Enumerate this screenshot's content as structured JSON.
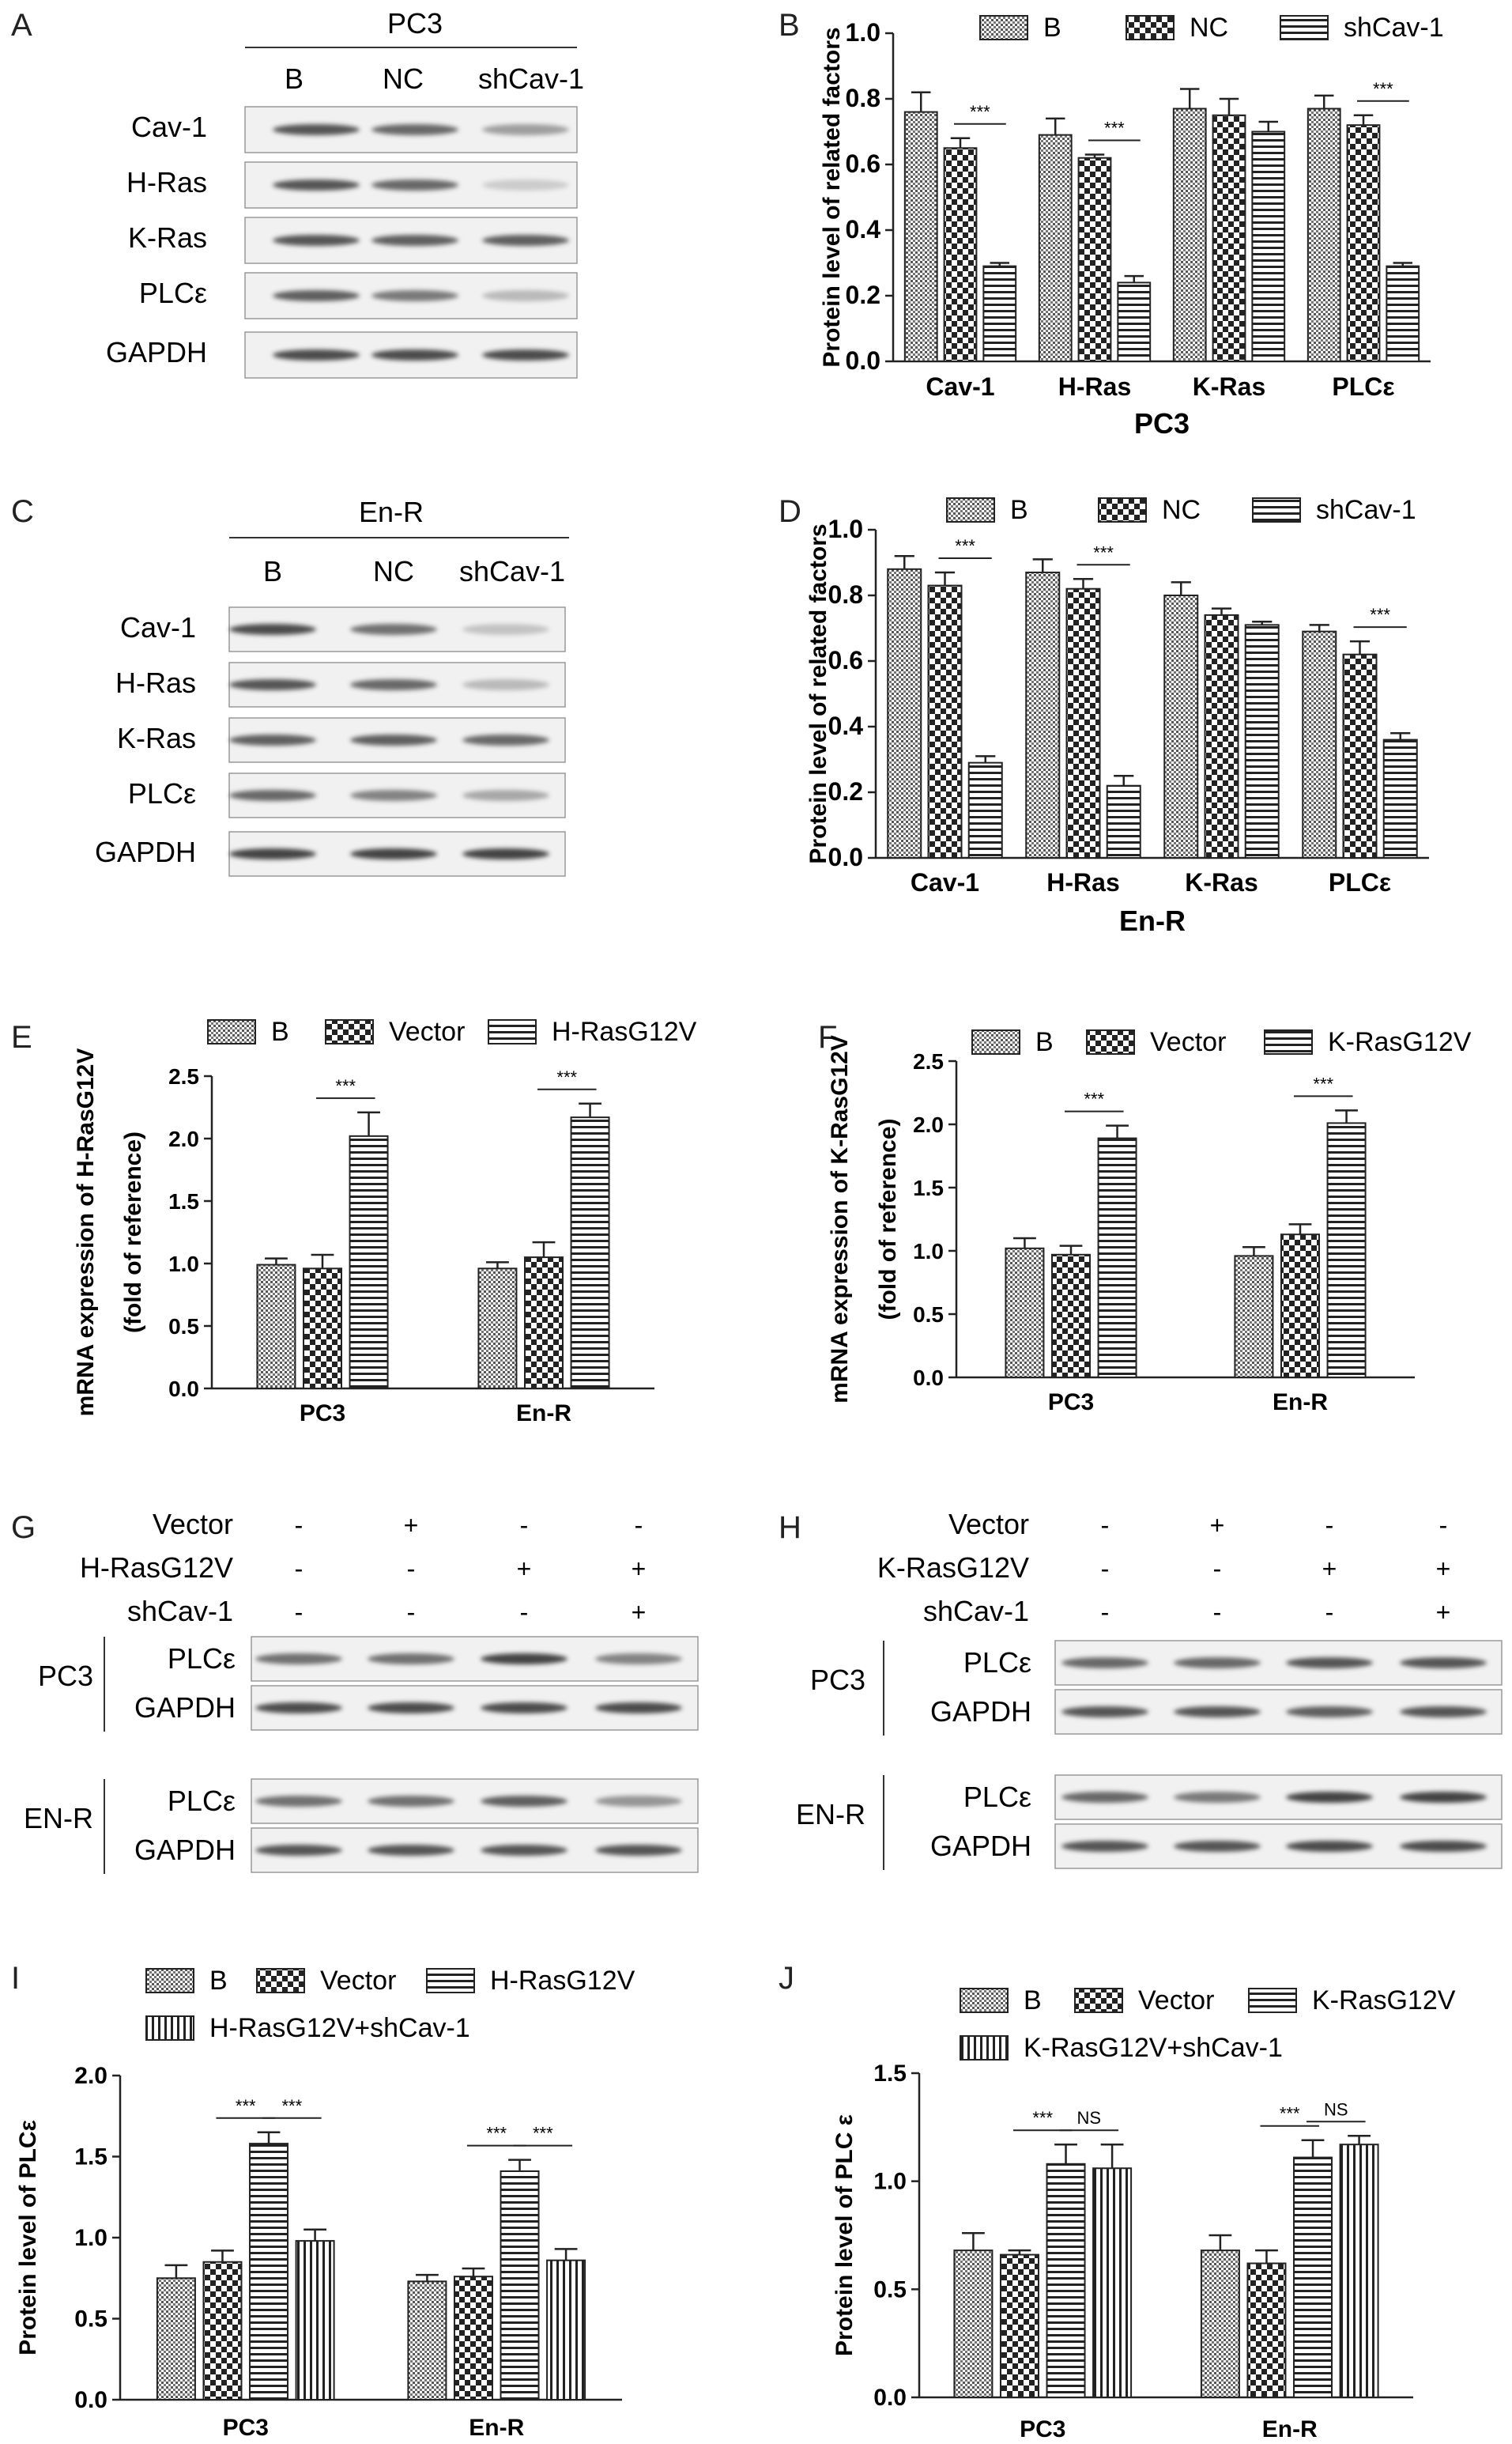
{
  "panel_letters": [
    "A",
    "B",
    "C",
    "D",
    "E",
    "F",
    "G",
    "H",
    "I",
    "J"
  ],
  "colors": {
    "bar_stroke": "#222222",
    "text": "#222222",
    "blot_bg": "#f1f1f1",
    "band": "#3a3a3a"
  },
  "blots": [
    {
      "letter": "A",
      "title": "PC3",
      "lanes": [
        "B",
        "NC",
        "shCav-1"
      ],
      "rows": [
        {
          "label": "Cav-1",
          "intensity": [
            0.85,
            0.75,
            0.45
          ]
        },
        {
          "label": "H-Ras",
          "intensity": [
            0.85,
            0.75,
            0.2
          ]
        },
        {
          "label": "K-Ras",
          "intensity": [
            0.85,
            0.8,
            0.8
          ]
        },
        {
          "label": "PLCε",
          "intensity": [
            0.8,
            0.65,
            0.3
          ]
        },
        {
          "label": "GAPDH",
          "intensity": [
            0.9,
            0.9,
            0.9
          ]
        }
      ]
    },
    {
      "letter": "C",
      "title": "En-R",
      "lanes": [
        "B",
        "NC",
        "shCav-1"
      ],
      "rows": [
        {
          "label": "Cav-1",
          "intensity": [
            0.9,
            0.7,
            0.25
          ]
        },
        {
          "label": "H-Ras",
          "intensity": [
            0.85,
            0.75,
            0.3
          ]
        },
        {
          "label": "K-Ras",
          "intensity": [
            0.8,
            0.8,
            0.75
          ]
        },
        {
          "label": "PLCε",
          "intensity": [
            0.75,
            0.6,
            0.4
          ]
        },
        {
          "label": "GAPDH",
          "intensity": [
            0.95,
            0.95,
            0.95
          ]
        }
      ]
    },
    {
      "letter": "G",
      "treatments": [
        {
          "label": "Vector",
          "marks": [
            "-",
            "+",
            "-",
            "-"
          ]
        },
        {
          "label": "H-RasG12V",
          "marks": [
            "-",
            "-",
            "+",
            "+"
          ]
        },
        {
          "label": "shCav-1",
          "marks": [
            "-",
            "-",
            "-",
            "+"
          ]
        }
      ],
      "groups": [
        {
          "label": "PC3",
          "rows": [
            {
              "label": "PLCε",
              "intensity": [
                0.7,
                0.7,
                0.95,
                0.6
              ]
            },
            {
              "label": "GAPDH",
              "intensity": [
                0.9,
                0.9,
                0.9,
                0.9
              ]
            }
          ]
        },
        {
          "label": "EN-R",
          "rows": [
            {
              "label": "PLCε",
              "intensity": [
                0.7,
                0.7,
                0.8,
                0.5
              ]
            },
            {
              "label": "GAPDH",
              "intensity": [
                0.85,
                0.85,
                0.85,
                0.85
              ]
            }
          ]
        }
      ]
    },
    {
      "letter": "H",
      "treatments": [
        {
          "label": "Vector",
          "marks": [
            "-",
            "+",
            "-",
            "-"
          ]
        },
        {
          "label": "K-RasG12V",
          "marks": [
            "-",
            "-",
            "+",
            "+"
          ]
        },
        {
          "label": "shCav-1",
          "marks": [
            "-",
            "-",
            "-",
            "+"
          ]
        }
      ],
      "groups": [
        {
          "label": "PC3",
          "rows": [
            {
              "label": "PLCε",
              "intensity": [
                0.75,
                0.75,
                0.85,
                0.85
              ]
            },
            {
              "label": "GAPDH",
              "intensity": [
                0.85,
                0.85,
                0.8,
                0.85
              ]
            }
          ]
        },
        {
          "label": "EN-R",
          "rows": [
            {
              "label": "PLCε",
              "intensity": [
                0.75,
                0.65,
                0.95,
                0.95
              ]
            },
            {
              "label": "GAPDH",
              "intensity": [
                0.85,
                0.85,
                0.9,
                0.9
              ]
            }
          ]
        }
      ]
    }
  ],
  "chart_data": [
    {
      "panel": "B",
      "type": "bar",
      "categories": [
        "Cav-1",
        "H-Ras",
        "K-Ras",
        "PLCε"
      ],
      "xlabel": "PC3",
      "ylabel": "Protein level of related factors",
      "ylim": [
        0,
        1.0
      ],
      "yticks": [
        "0.0",
        "0.2",
        "0.4",
        "0.6",
        "0.8",
        "1.0"
      ],
      "series": [
        {
          "name": "B",
          "pattern": "dots",
          "values": [
            0.76,
            0.69,
            0.77,
            0.77
          ],
          "errors": [
            0.06,
            0.05,
            0.06,
            0.04
          ]
        },
        {
          "name": "NC",
          "pattern": "checker",
          "values": [
            0.65,
            0.62,
            0.75,
            0.72
          ],
          "errors": [
            0.03,
            0.01,
            0.05,
            0.03
          ]
        },
        {
          "name": "shCav-1",
          "pattern": "hstripe",
          "values": [
            0.29,
            0.24,
            0.7,
            0.29
          ],
          "errors": [
            0.01,
            0.02,
            0.03,
            0.01
          ]
        }
      ],
      "significance": [
        {
          "category": 0,
          "from": 1,
          "to": 2,
          "label": "***"
        },
        {
          "category": 1,
          "from": 1,
          "to": 2,
          "label": "***"
        },
        {
          "category": 3,
          "from": 1,
          "to": 2,
          "label": "***"
        }
      ],
      "legend": "top"
    },
    {
      "panel": "D",
      "type": "bar",
      "categories": [
        "Cav-1",
        "H-Ras",
        "K-Ras",
        "PLCε"
      ],
      "xlabel": "En-R",
      "ylabel": "Protein level of related factors",
      "ylim": [
        0,
        1.0
      ],
      "yticks": [
        "0.0",
        "0.2",
        "0.4",
        "0.6",
        "0.8",
        "1.0"
      ],
      "series": [
        {
          "name": "B",
          "pattern": "dots",
          "values": [
            0.88,
            0.87,
            0.8,
            0.69
          ],
          "errors": [
            0.04,
            0.04,
            0.04,
            0.02
          ]
        },
        {
          "name": "NC",
          "pattern": "checker",
          "values": [
            0.83,
            0.82,
            0.74,
            0.62
          ],
          "errors": [
            0.04,
            0.03,
            0.02,
            0.04
          ]
        },
        {
          "name": "shCav-1",
          "pattern": "hstripe",
          "values": [
            0.29,
            0.22,
            0.71,
            0.36
          ],
          "errors": [
            0.02,
            0.03,
            0.01,
            0.02
          ]
        }
      ],
      "significance": [
        {
          "category": 0,
          "from": 1,
          "to": 2,
          "label": "***"
        },
        {
          "category": 1,
          "from": 1,
          "to": 2,
          "label": "***"
        },
        {
          "category": 3,
          "from": 1,
          "to": 2,
          "label": "***"
        }
      ],
      "legend": "top"
    },
    {
      "panel": "E",
      "type": "bar",
      "categories": [
        "PC3",
        "En-R"
      ],
      "xlabel": "",
      "ylabel": "mRNA expression of H-RasG12V",
      "ylabel2": "(fold of reference)",
      "ylim": [
        0,
        2.5
      ],
      "yticks": [
        "0.0",
        "0.5",
        "1.0",
        "1.5",
        "2.0",
        "2.5"
      ],
      "series": [
        {
          "name": "B",
          "pattern": "dots",
          "values": [
            0.99,
            0.96
          ],
          "errors": [
            0.05,
            0.05
          ]
        },
        {
          "name": "Vector",
          "pattern": "checker",
          "values": [
            0.96,
            1.05
          ],
          "errors": [
            0.11,
            0.12
          ]
        },
        {
          "name": "H-RasG12V",
          "pattern": "hstripe",
          "values": [
            2.02,
            2.17
          ],
          "errors": [
            0.19,
            0.11
          ]
        }
      ],
      "significance": [
        {
          "category": 0,
          "from": 1,
          "to": 2,
          "label": "***"
        },
        {
          "category": 1,
          "from": 1,
          "to": 2,
          "label": "***"
        }
      ],
      "legend": "top"
    },
    {
      "panel": "F",
      "type": "bar",
      "categories": [
        "PC3",
        "En-R"
      ],
      "xlabel": "",
      "ylabel": "mRNA expression of K-RasG12V",
      "ylabel2": "(fold of reference)",
      "ylim": [
        0,
        2.5
      ],
      "yticks": [
        "0.0",
        "0.5",
        "1.0",
        "1.5",
        "2.0",
        "2.5"
      ],
      "series": [
        {
          "name": "B",
          "pattern": "dots",
          "values": [
            1.02,
            0.96
          ],
          "errors": [
            0.08,
            0.07
          ]
        },
        {
          "name": "Vector",
          "pattern": "checker",
          "values": [
            0.97,
            1.13
          ],
          "errors": [
            0.07,
            0.08
          ]
        },
        {
          "name": "K-RasG12V",
          "pattern": "hstripe",
          "values": [
            1.89,
            2.01
          ],
          "errors": [
            0.1,
            0.1
          ]
        }
      ],
      "significance": [
        {
          "category": 0,
          "from": 1,
          "to": 2,
          "label": "***"
        },
        {
          "category": 1,
          "from": 1,
          "to": 2,
          "label": "***"
        }
      ],
      "legend": "top"
    },
    {
      "panel": "I",
      "type": "bar",
      "categories": [
        "PC3",
        "En-R"
      ],
      "xlabel": "",
      "ylabel": "Protein level of PLCε",
      "ylim": [
        0,
        2.0
      ],
      "yticks": [
        "0.0",
        "0.5",
        "1.0",
        "1.5",
        "2.0"
      ],
      "series": [
        {
          "name": "B",
          "pattern": "dots",
          "values": [
            0.75,
            0.73
          ],
          "errors": [
            0.08,
            0.04
          ]
        },
        {
          "name": "Vector",
          "pattern": "checker",
          "values": [
            0.85,
            0.76
          ],
          "errors": [
            0.07,
            0.05
          ]
        },
        {
          "name": "H-RasG12V",
          "pattern": "hstripe",
          "values": [
            1.58,
            1.41
          ],
          "errors": [
            0.07,
            0.07
          ]
        },
        {
          "name": "H-RasG12V+shCav-1",
          "pattern": "vstripe",
          "values": [
            0.98,
            0.86
          ],
          "errors": [
            0.07,
            0.07
          ]
        }
      ],
      "significance": [
        {
          "category": 0,
          "from": 1,
          "to": 2,
          "label": "***"
        },
        {
          "category": 0,
          "from": 2,
          "to": 3,
          "label": "***"
        },
        {
          "category": 1,
          "from": 1,
          "to": 2,
          "label": "***"
        },
        {
          "category": 1,
          "from": 2,
          "to": 3,
          "label": "***"
        }
      ],
      "legend": "top"
    },
    {
      "panel": "J",
      "type": "bar",
      "categories": [
        "PC3",
        "En-R"
      ],
      "xlabel": "",
      "ylabel": "Protein level of PLC ε",
      "ylim": [
        0,
        1.5
      ],
      "yticks": [
        "0.0",
        "0.5",
        "1.0",
        "1.5"
      ],
      "series": [
        {
          "name": "B",
          "pattern": "dots",
          "values": [
            0.68,
            0.68
          ],
          "errors": [
            0.08,
            0.07
          ]
        },
        {
          "name": "Vector",
          "pattern": "checker",
          "values": [
            0.66,
            0.62
          ],
          "errors": [
            0.02,
            0.06
          ]
        },
        {
          "name": "K-RasG12V",
          "pattern": "hstripe",
          "values": [
            1.08,
            1.11
          ],
          "errors": [
            0.09,
            0.08
          ]
        },
        {
          "name": "K-RasG12V+shCav-1",
          "pattern": "vstripe",
          "values": [
            1.06,
            1.17
          ],
          "errors": [
            0.11,
            0.04
          ]
        }
      ],
      "significance": [
        {
          "category": 0,
          "from": 1,
          "to": 2,
          "label": "***"
        },
        {
          "category": 0,
          "from": 2,
          "to": 3,
          "label": "NS"
        },
        {
          "category": 1,
          "from": 1,
          "to": 2,
          "label": "***"
        },
        {
          "category": 1,
          "from": 2,
          "to": 3,
          "label": "NS"
        }
      ],
      "legend": "top"
    }
  ]
}
